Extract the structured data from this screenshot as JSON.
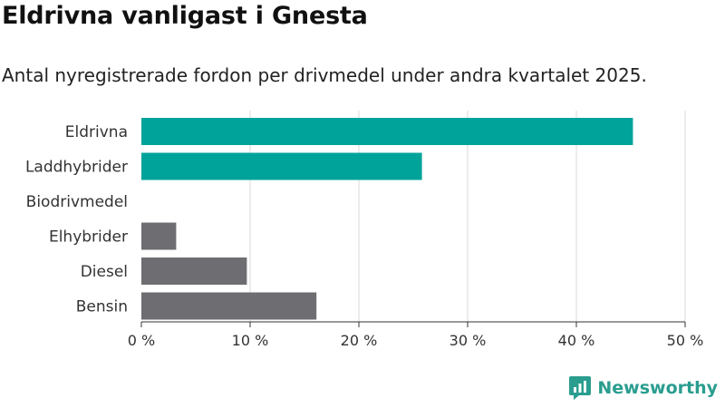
{
  "chart_data": {
    "type": "bar",
    "orientation": "horizontal",
    "title": "Eldrivna vanligast i Gnesta",
    "subtitle": "Antal nyregistrerade fordon per drivmedel under andra kvartalet 2025.",
    "categories": [
      "Eldrivna",
      "Laddhybrider",
      "Biodrivmedel",
      "Elhybrider",
      "Diesel",
      "Bensin"
    ],
    "values": [
      45.2,
      25.8,
      0,
      3.2,
      9.7,
      16.1
    ],
    "bar_colors": [
      "#00a39a",
      "#00a39a",
      "#00a39a",
      "#6e6d72",
      "#6e6d72",
      "#6e6d72"
    ],
    "xlim": [
      0,
      50
    ],
    "xticks": [
      "0 %",
      "10 %",
      "20 %",
      "30 %",
      "40 %",
      "50 %"
    ],
    "xtick_values": [
      0,
      10,
      20,
      30,
      40,
      50
    ],
    "grid": true,
    "legend": "none"
  },
  "brand": {
    "name": "Newsworthy",
    "icon": "newsworthy-logo-icon",
    "color": "#2a9d8f"
  }
}
